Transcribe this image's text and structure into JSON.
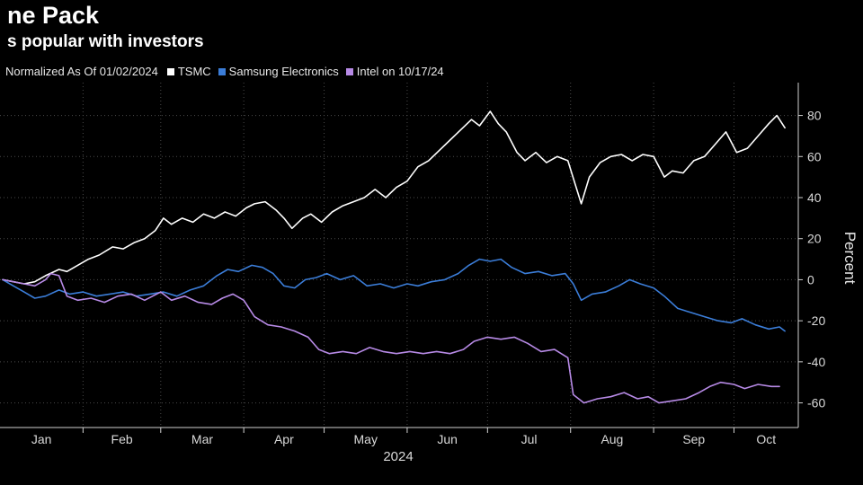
{
  "header": {
    "title": "ne Pack",
    "subtitle": "s popular with investors"
  },
  "legend": {
    "note": "Normalized As Of 01/02/2024",
    "items": [
      {
        "label": "TSMC",
        "color": "#ffffff"
      },
      {
        "label": "Samsung Electronics",
        "color": "#3b7dd8"
      },
      {
        "label": "Intel on 10/17/24",
        "color": "#b78ae6"
      }
    ]
  },
  "chart_data": {
    "type": "line",
    "ylabel": "Percent",
    "xlabel": "2024",
    "ylim": [
      -72,
      96
    ],
    "y_ticks": [
      80,
      60,
      40,
      20,
      0,
      -20,
      -40,
      -60
    ],
    "x_range": [
      "2024-01-01",
      "2024-10-25"
    ],
    "x_ticks": [
      {
        "label": "Jan",
        "date": "2024-01-01"
      },
      {
        "label": "Feb",
        "date": "2024-02-01"
      },
      {
        "label": "Mar",
        "date": "2024-03-01"
      },
      {
        "label": "Apr",
        "date": "2024-04-01"
      },
      {
        "label": "May",
        "date": "2024-05-01"
      },
      {
        "label": "Jun",
        "date": "2024-06-01"
      },
      {
        "label": "Jul",
        "date": "2024-07-01"
      },
      {
        "label": "Aug",
        "date": "2024-08-01"
      },
      {
        "label": "Sep",
        "date": "2024-09-01"
      },
      {
        "label": "Oct",
        "date": "2024-10-01"
      }
    ],
    "grid": true,
    "series": [
      {
        "name": "TSMC",
        "color": "#ffffff",
        "points": [
          [
            "2024-01-02",
            0
          ],
          [
            "2024-01-06",
            -1
          ],
          [
            "2024-01-10",
            -2
          ],
          [
            "2024-01-14",
            -1
          ],
          [
            "2024-01-18",
            2
          ],
          [
            "2024-01-23",
            5
          ],
          [
            "2024-01-26",
            4
          ],
          [
            "2024-01-30",
            7
          ],
          [
            "2024-02-03",
            10
          ],
          [
            "2024-02-07",
            12
          ],
          [
            "2024-02-12",
            16
          ],
          [
            "2024-02-16",
            15
          ],
          [
            "2024-02-20",
            18
          ],
          [
            "2024-02-24",
            20
          ],
          [
            "2024-02-28",
            24
          ],
          [
            "2024-03-02",
            30
          ],
          [
            "2024-03-05",
            27
          ],
          [
            "2024-03-09",
            30
          ],
          [
            "2024-03-13",
            28
          ],
          [
            "2024-03-17",
            32
          ],
          [
            "2024-03-21",
            30
          ],
          [
            "2024-03-25",
            33
          ],
          [
            "2024-03-29",
            31
          ],
          [
            "2024-04-02",
            35
          ],
          [
            "2024-04-05",
            37
          ],
          [
            "2024-04-09",
            38
          ],
          [
            "2024-04-13",
            34
          ],
          [
            "2024-04-16",
            30
          ],
          [
            "2024-04-19",
            25
          ],
          [
            "2024-04-23",
            30
          ],
          [
            "2024-04-26",
            32
          ],
          [
            "2024-04-30",
            28
          ],
          [
            "2024-05-04",
            33
          ],
          [
            "2024-05-08",
            36
          ],
          [
            "2024-05-12",
            38
          ],
          [
            "2024-05-16",
            40
          ],
          [
            "2024-05-20",
            44
          ],
          [
            "2024-05-24",
            40
          ],
          [
            "2024-05-28",
            45
          ],
          [
            "2024-06-01",
            48
          ],
          [
            "2024-06-05",
            55
          ],
          [
            "2024-06-09",
            58
          ],
          [
            "2024-06-13",
            63
          ],
          [
            "2024-06-17",
            68
          ],
          [
            "2024-06-21",
            73
          ],
          [
            "2024-06-25",
            78
          ],
          [
            "2024-06-28",
            75
          ],
          [
            "2024-07-02",
            82
          ],
          [
            "2024-07-05",
            76
          ],
          [
            "2024-07-08",
            72
          ],
          [
            "2024-07-12",
            62
          ],
          [
            "2024-07-15",
            58
          ],
          [
            "2024-07-19",
            62
          ],
          [
            "2024-07-23",
            57
          ],
          [
            "2024-07-27",
            60
          ],
          [
            "2024-07-31",
            58
          ],
          [
            "2024-08-05",
            37
          ],
          [
            "2024-08-08",
            50
          ],
          [
            "2024-08-12",
            57
          ],
          [
            "2024-08-16",
            60
          ],
          [
            "2024-08-20",
            61
          ],
          [
            "2024-08-24",
            58
          ],
          [
            "2024-08-28",
            61
          ],
          [
            "2024-09-01",
            60
          ],
          [
            "2024-09-05",
            50
          ],
          [
            "2024-09-08",
            53
          ],
          [
            "2024-09-12",
            52
          ],
          [
            "2024-09-16",
            58
          ],
          [
            "2024-09-20",
            60
          ],
          [
            "2024-09-24",
            66
          ],
          [
            "2024-09-28",
            72
          ],
          [
            "2024-10-02",
            62
          ],
          [
            "2024-10-06",
            64
          ],
          [
            "2024-10-10",
            70
          ],
          [
            "2024-10-14",
            76
          ],
          [
            "2024-10-17",
            80
          ],
          [
            "2024-10-20",
            74
          ]
        ]
      },
      {
        "name": "Samsung Electronics",
        "color": "#3b7dd8",
        "points": [
          [
            "2024-01-02",
            0
          ],
          [
            "2024-01-06",
            -3
          ],
          [
            "2024-01-10",
            -6
          ],
          [
            "2024-01-14",
            -9
          ],
          [
            "2024-01-18",
            -8
          ],
          [
            "2024-01-23",
            -5
          ],
          [
            "2024-01-27",
            -7
          ],
          [
            "2024-02-01",
            -6
          ],
          [
            "2024-02-06",
            -8
          ],
          [
            "2024-02-11",
            -7
          ],
          [
            "2024-02-16",
            -6
          ],
          [
            "2024-02-21",
            -8
          ],
          [
            "2024-02-26",
            -7
          ],
          [
            "2024-03-02",
            -6
          ],
          [
            "2024-03-07",
            -8
          ],
          [
            "2024-03-12",
            -5
          ],
          [
            "2024-03-17",
            -3
          ],
          [
            "2024-03-22",
            2
          ],
          [
            "2024-03-26",
            5
          ],
          [
            "2024-03-30",
            4
          ],
          [
            "2024-04-04",
            7
          ],
          [
            "2024-04-08",
            6
          ],
          [
            "2024-04-12",
            3
          ],
          [
            "2024-04-16",
            -3
          ],
          [
            "2024-04-20",
            -4
          ],
          [
            "2024-04-24",
            0
          ],
          [
            "2024-04-28",
            1
          ],
          [
            "2024-05-02",
            3
          ],
          [
            "2024-05-07",
            0
          ],
          [
            "2024-05-12",
            2
          ],
          [
            "2024-05-17",
            -3
          ],
          [
            "2024-05-22",
            -2
          ],
          [
            "2024-05-27",
            -4
          ],
          [
            "2024-06-01",
            -2
          ],
          [
            "2024-06-05",
            -3
          ],
          [
            "2024-06-10",
            -1
          ],
          [
            "2024-06-15",
            0
          ],
          [
            "2024-06-20",
            3
          ],
          [
            "2024-06-24",
            7
          ],
          [
            "2024-06-28",
            10
          ],
          [
            "2024-07-02",
            9
          ],
          [
            "2024-07-06",
            10
          ],
          [
            "2024-07-10",
            6
          ],
          [
            "2024-07-15",
            3
          ],
          [
            "2024-07-20",
            4
          ],
          [
            "2024-07-25",
            2
          ],
          [
            "2024-07-30",
            3
          ],
          [
            "2024-08-02",
            -2
          ],
          [
            "2024-08-05",
            -10
          ],
          [
            "2024-08-09",
            -7
          ],
          [
            "2024-08-14",
            -6
          ],
          [
            "2024-08-19",
            -3
          ],
          [
            "2024-08-23",
            0
          ],
          [
            "2024-08-27",
            -2
          ],
          [
            "2024-09-01",
            -4
          ],
          [
            "2024-09-05",
            -8
          ],
          [
            "2024-09-10",
            -14
          ],
          [
            "2024-09-15",
            -16
          ],
          [
            "2024-09-20",
            -18
          ],
          [
            "2024-09-25",
            -20
          ],
          [
            "2024-09-30",
            -21
          ],
          [
            "2024-10-04",
            -19
          ],
          [
            "2024-10-09",
            -22
          ],
          [
            "2024-10-14",
            -24
          ],
          [
            "2024-10-18",
            -23
          ],
          [
            "2024-10-20",
            -25
          ]
        ]
      },
      {
        "name": "Intel on 10/17/24",
        "color": "#b78ae6",
        "points": [
          [
            "2024-01-02",
            0
          ],
          [
            "2024-01-06",
            -1
          ],
          [
            "2024-01-10",
            -2
          ],
          [
            "2024-01-14",
            -3
          ],
          [
            "2024-01-18",
            0
          ],
          [
            "2024-01-20",
            3
          ],
          [
            "2024-01-23",
            2
          ],
          [
            "2024-01-26",
            -8
          ],
          [
            "2024-01-30",
            -10
          ],
          [
            "2024-02-04",
            -9
          ],
          [
            "2024-02-09",
            -11
          ],
          [
            "2024-02-14",
            -8
          ],
          [
            "2024-02-19",
            -7
          ],
          [
            "2024-02-24",
            -10
          ],
          [
            "2024-03-01",
            -6
          ],
          [
            "2024-03-05",
            -10
          ],
          [
            "2024-03-10",
            -8
          ],
          [
            "2024-03-15",
            -11
          ],
          [
            "2024-03-20",
            -12
          ],
          [
            "2024-03-24",
            -9
          ],
          [
            "2024-03-28",
            -7
          ],
          [
            "2024-04-01",
            -10
          ],
          [
            "2024-04-05",
            -18
          ],
          [
            "2024-04-10",
            -22
          ],
          [
            "2024-04-15",
            -23
          ],
          [
            "2024-04-20",
            -25
          ],
          [
            "2024-04-25",
            -28
          ],
          [
            "2024-04-29",
            -34
          ],
          [
            "2024-05-03",
            -36
          ],
          [
            "2024-05-08",
            -35
          ],
          [
            "2024-05-13",
            -36
          ],
          [
            "2024-05-18",
            -33
          ],
          [
            "2024-05-23",
            -35
          ],
          [
            "2024-05-28",
            -36
          ],
          [
            "2024-06-02",
            -35
          ],
          [
            "2024-06-07",
            -36
          ],
          [
            "2024-06-12",
            -35
          ],
          [
            "2024-06-17",
            -36
          ],
          [
            "2024-06-22",
            -34
          ],
          [
            "2024-06-26",
            -30
          ],
          [
            "2024-07-01",
            -28
          ],
          [
            "2024-07-06",
            -29
          ],
          [
            "2024-07-11",
            -28
          ],
          [
            "2024-07-16",
            -31
          ],
          [
            "2024-07-21",
            -35
          ],
          [
            "2024-07-26",
            -34
          ],
          [
            "2024-07-31",
            -38
          ],
          [
            "2024-08-02",
            -56
          ],
          [
            "2024-08-06",
            -60
          ],
          [
            "2024-08-11",
            -58
          ],
          [
            "2024-08-16",
            -57
          ],
          [
            "2024-08-21",
            -55
          ],
          [
            "2024-08-26",
            -58
          ],
          [
            "2024-08-30",
            -57
          ],
          [
            "2024-09-03",
            -60
          ],
          [
            "2024-09-08",
            -59
          ],
          [
            "2024-09-13",
            -58
          ],
          [
            "2024-09-18",
            -55
          ],
          [
            "2024-09-22",
            -52
          ],
          [
            "2024-09-26",
            -50
          ],
          [
            "2024-10-01",
            -51
          ],
          [
            "2024-10-05",
            -53
          ],
          [
            "2024-10-10",
            -51
          ],
          [
            "2024-10-15",
            -52
          ],
          [
            "2024-10-18",
            -52
          ]
        ]
      }
    ]
  }
}
